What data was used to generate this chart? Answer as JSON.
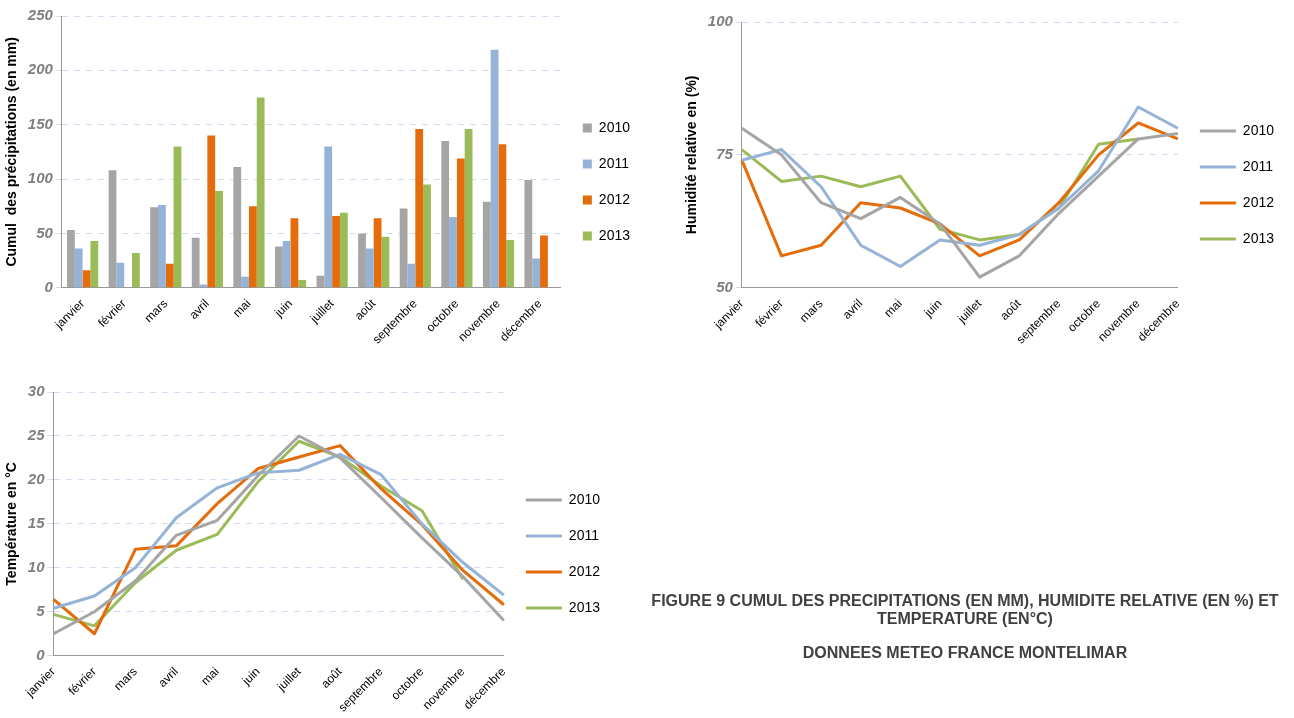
{
  "chart_data": [
    {
      "type": "bar",
      "ylabel": "Cumul  des précipitations (en mm)",
      "categories": [
        "janvier",
        "février",
        "mars",
        "avril",
        "mai",
        "juin",
        "juillet",
        "août",
        "septembre",
        "octobre",
        "novembre",
        "décembre"
      ],
      "ylim": [
        0,
        250
      ],
      "yticks": [
        0,
        50,
        100,
        150,
        200,
        250
      ],
      "grid": "y",
      "legend": "right",
      "series": [
        {
          "name": "2010",
          "color": "#a5a5a5",
          "values": [
            53,
            108,
            74,
            46,
            111,
            38,
            11,
            50,
            73,
            135,
            79,
            99
          ]
        },
        {
          "name": "2011",
          "color": "#95b3d7",
          "values": [
            36,
            23,
            76,
            3,
            10,
            43,
            130,
            36,
            22,
            65,
            219,
            27
          ]
        },
        {
          "name": "2012",
          "color": "#e46c0a",
          "values": [
            16,
            null,
            22,
            140,
            75,
            64,
            66,
            64,
            146,
            119,
            132,
            48
          ]
        },
        {
          "name": "2013",
          "color": "#9bbb59",
          "values": [
            43,
            32,
            130,
            89,
            175,
            7,
            69,
            47,
            95,
            146,
            44,
            null
          ]
        }
      ]
    },
    {
      "type": "line",
      "ylabel": "Humidité relative en (%)",
      "categories": [
        "janvier",
        "février",
        "mars",
        "avril",
        "mai",
        "juin",
        "juillet",
        "août",
        "septembre",
        "octobre",
        "novembre",
        "décembre"
      ],
      "ylim": [
        50,
        100
      ],
      "yticks": [
        50,
        75,
        100
      ],
      "grid": "y",
      "legend": "right",
      "marker": "none",
      "series": [
        {
          "name": "2010",
          "color": "#a5a5a5",
          "values": [
            80,
            75,
            66,
            63,
            67,
            62,
            52,
            56,
            64,
            71,
            78,
            79
          ]
        },
        {
          "name": "2011",
          "color": "#95b3d7",
          "values": [
            74,
            76,
            69,
            58,
            54,
            59,
            58,
            60,
            65,
            72,
            84,
            80
          ]
        },
        {
          "name": "2012",
          "color": "#e46c0a",
          "values": [
            74,
            56,
            58,
            66,
            65,
            62,
            56,
            59,
            66,
            75,
            81,
            78
          ]
        },
        {
          "name": "2013",
          "color": "#9bbb59",
          "values": [
            76,
            70,
            71,
            69,
            71,
            61,
            59,
            60,
            65,
            77,
            78,
            null
          ]
        }
      ]
    },
    {
      "type": "line",
      "ylabel": "Température en °C",
      "categories": [
        "janvier",
        "février",
        "mars",
        "avril",
        "mai",
        "juin",
        "juillet",
        "août",
        "septembre",
        "octobre",
        "novembre",
        "décembre"
      ],
      "ylim": [
        0,
        30
      ],
      "yticks": [
        0,
        5,
        10,
        15,
        20,
        25,
        30
      ],
      "grid": "y",
      "legend": "right",
      "marker": "none",
      "series": [
        {
          "name": "2010",
          "color": "#a5a5a5",
          "values": [
            2.5,
            5,
            8.5,
            13.7,
            15.4,
            20.5,
            25,
            22.5,
            18,
            13.4,
            9,
            4
          ]
        },
        {
          "name": "2011",
          "color": "#95b3d7",
          "values": [
            5.4,
            6.8,
            10,
            15.7,
            19.1,
            20.8,
            21.1,
            22.9,
            20.6,
            15,
            10.6,
            6.9
          ]
        },
        {
          "name": "2012",
          "color": "#e46c0a",
          "values": [
            6.4,
            2.5,
            12.1,
            12.5,
            17.3,
            21.3,
            22.6,
            23.9,
            19,
            14.9,
            9.7,
            5.8
          ]
        },
        {
          "name": "2013",
          "color": "#9bbb59",
          "values": [
            4.7,
            3.4,
            8.3,
            12,
            13.8,
            19.8,
            24.4,
            22.6,
            19.3,
            16.5,
            8.7,
            null
          ]
        }
      ],
      "annotations": [
        "FIGURE 9 CUMUL DES PRECIPITATIONS (EN MM),  HUMIDITE RELATIVE (EN %) ET TEMPERATURE (EN°C)",
        "DONNEES METEO FRANCE MONTELIMAR"
      ]
    }
  ]
}
